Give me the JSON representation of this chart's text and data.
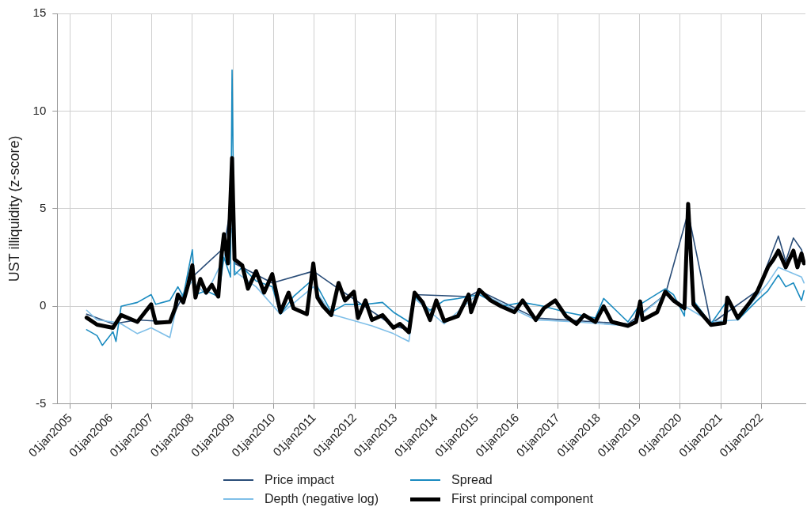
{
  "chart_data": {
    "type": "line",
    "ylabel": "UST illiquidity (z-score)",
    "xlim": [
      "2004-09-05",
      "2023-02-01"
    ],
    "ylim": [
      -5,
      15
    ],
    "yticks": [
      -5,
      0,
      5,
      10,
      15
    ],
    "xticks": [
      {
        "value": "2005-01-01",
        "label": "01jan2005"
      },
      {
        "value": "2006-01-01",
        "label": "01jan2006"
      },
      {
        "value": "2007-01-01",
        "label": "01jan2007"
      },
      {
        "value": "2008-01-01",
        "label": "01jan2008"
      },
      {
        "value": "2009-01-01",
        "label": "01jan2009"
      },
      {
        "value": "2010-01-01",
        "label": "01jan2010"
      },
      {
        "value": "2011-01-01",
        "label": "01jan2011"
      },
      {
        "value": "2012-01-01",
        "label": "01jan2012"
      },
      {
        "value": "2013-01-01",
        "label": "01jan2013"
      },
      {
        "value": "2014-01-01",
        "label": "01jan2014"
      },
      {
        "value": "2015-01-01",
        "label": "01jan2015"
      },
      {
        "value": "2016-01-01",
        "label": "01jan2016"
      },
      {
        "value": "2017-01-01",
        "label": "01jan2017"
      },
      {
        "value": "2018-01-01",
        "label": "01jan2018"
      },
      {
        "value": "2019-01-01",
        "label": "01jan2019"
      },
      {
        "value": "2020-01-01",
        "label": "01jan2020"
      },
      {
        "value": "2021-01-01",
        "label": "01jan2021"
      },
      {
        "value": "2022-01-01",
        "label": "01jan2022"
      }
    ],
    "grid": true,
    "legend": "bottom",
    "line_style": "solid",
    "marker": "none",
    "series": [
      {
        "name": "Price impact",
        "color": "#2a4d78",
        "x": [
          "2005-05-27",
          "2005-08-29",
          "2006-01-19",
          "2006-08-26",
          "2007-06-14",
          "2008-01-02",
          "2008-10-12",
          "2008-12-24",
          "2009-01-15",
          "2009-12-20",
          "2010-12-24",
          "2011-08-08",
          "2012-12-13",
          "2013-05-01",
          "2013-06-21",
          "2014-10-20",
          "2015-01-23",
          "2016-06-14",
          "2017-12-02",
          "2018-09-20",
          "2019-08-22",
          "2020-03-14",
          "2020-10-05",
          "2021-11-25",
          "2022-03-01",
          "2022-06-03",
          "2022-08-08",
          "2022-10-16",
          "2022-12-28",
          "2023-01-19"
        ],
        "values": [
          -0.4,
          -0.6,
          -0.9,
          -0.7,
          -0.8,
          1.5,
          3.0,
          5.5,
          2.2,
          1.2,
          1.8,
          0.9,
          -1.0,
          -1.2,
          0.6,
          0.5,
          0.8,
          -0.6,
          -0.8,
          -0.9,
          0.6,
          4.8,
          -0.9,
          0.8,
          2.2,
          3.6,
          2.3,
          3.5,
          2.9,
          2.4
        ]
      },
      {
        "name": "Depth (negative log)",
        "color": "#7fbfe8",
        "x": [
          "2005-05-27",
          "2005-08-29",
          "2006-01-19",
          "2006-04-02",
          "2006-08-26",
          "2006-12-28",
          "2007-06-14",
          "2007-08-25",
          "2008-01-02",
          "2008-05-05",
          "2008-10-12",
          "2008-12-24",
          "2009-01-15",
          "2009-07-28",
          "2010-03-04",
          "2010-12-24",
          "2011-06-03",
          "2012-06-03",
          "2012-12-13",
          "2013-05-01",
          "2013-06-21",
          "2014-03-14",
          "2015-01-23",
          "2016-06-14",
          "2017-06-14",
          "2018-09-20",
          "2019-08-22",
          "2020-10-05",
          "2021-06-03",
          "2022-03-01",
          "2022-06-03",
          "2022-12-28",
          "2023-01-19"
        ],
        "values": [
          -0.2,
          -0.7,
          -0.8,
          -0.9,
          -1.4,
          -1.1,
          -1.6,
          0.3,
          1.3,
          0.6,
          2.5,
          4.0,
          1.8,
          1.0,
          -0.4,
          1.0,
          -0.4,
          -1.0,
          -1.4,
          -1.8,
          0.4,
          -0.9,
          0.7,
          -0.7,
          -0.8,
          -1.0,
          0.6,
          -0.8,
          -0.7,
          1.2,
          2.0,
          1.5,
          1.2
        ]
      },
      {
        "name": "Spread",
        "color": "#1a8bc0",
        "x": [
          "2005-05-27",
          "2005-08-29",
          "2005-10-15",
          "2006-01-19",
          "2006-02-15",
          "2006-04-02",
          "2006-08-26",
          "2006-12-28",
          "2007-02-07",
          "2007-06-14",
          "2007-08-25",
          "2007-10-12",
          "2008-01-02",
          "2008-01-30",
          "2008-05-05",
          "2008-08-22",
          "2008-10-12",
          "2008-12-10",
          "2008-12-24",
          "2009-01-15",
          "2009-03-25",
          "2009-07-28",
          "2009-12-20",
          "2010-03-04",
          "2010-06-29",
          "2010-12-24",
          "2011-06-03",
          "2011-10-05",
          "2012-04-05",
          "2012-09-06",
          "2012-12-13",
          "2013-05-01",
          "2013-06-21",
          "2013-11-07",
          "2014-03-14",
          "2014-07-16",
          "2015-01-23",
          "2015-08-08",
          "2016-02-17",
          "2016-08-26",
          "2017-03-11",
          "2017-12-02",
          "2018-02-14",
          "2018-09-20",
          "2019-01-08",
          "2019-08-22",
          "2019-11-03",
          "2020-02-10",
          "2020-03-14",
          "2020-05-01",
          "2020-10-05",
          "2021-03-01",
          "2021-06-03",
          "2021-11-25",
          "2022-03-01",
          "2022-06-03",
          "2022-08-08",
          "2022-10-16",
          "2022-12-28",
          "2023-01-19"
        ],
        "values": [
          -1.2,
          -1.5,
          -2.0,
          -1.3,
          -1.8,
          0.0,
          0.2,
          0.6,
          0.1,
          0.3,
          1.0,
          0.5,
          2.9,
          0.6,
          0.8,
          0.5,
          2.5,
          1.5,
          12.1,
          1.6,
          2.0,
          1.3,
          1.0,
          -0.4,
          0.5,
          1.4,
          -0.3,
          0.1,
          0.1,
          0.2,
          -0.3,
          -0.8,
          0.5,
          -0.2,
          0.3,
          0.4,
          0.6,
          0.0,
          0.2,
          0.0,
          -0.3,
          -0.6,
          0.4,
          -0.8,
          0.1,
          0.9,
          0.6,
          -0.5,
          4.6,
          0.3,
          -0.9,
          0.3,
          -0.7,
          0.3,
          0.8,
          1.6,
          1.0,
          1.2,
          0.3,
          0.8
        ]
      },
      {
        "name": "First principal component",
        "color": "#000000",
        "x": [
          "2005-05-27",
          "2005-08-29",
          "2006-01-19",
          "2006-04-02",
          "2006-08-26",
          "2006-12-28",
          "2007-02-07",
          "2007-06-14",
          "2007-07-31",
          "2007-08-25",
          "2007-10-12",
          "2007-11-25",
          "2008-01-02",
          "2008-01-30",
          "2008-03-14",
          "2008-05-05",
          "2008-06-25",
          "2008-08-22",
          "2008-09-20",
          "2008-10-12",
          "2008-11-17",
          "2008-12-24",
          "2009-01-15",
          "2009-03-25",
          "2009-05-16",
          "2009-07-28",
          "2009-10-08",
          "2009-12-20",
          "2010-03-04",
          "2010-05-16",
          "2010-06-29",
          "2010-10-27",
          "2010-12-24",
          "2011-01-30",
          "2011-03-22",
          "2011-06-03",
          "2011-08-08",
          "2011-10-05",
          "2011-12-24",
          "2012-01-30",
          "2012-04-05",
          "2012-06-03",
          "2012-09-06",
          "2012-12-13",
          "2013-02-10",
          "2013-05-01",
          "2013-06-21",
          "2013-09-02",
          "2013-11-07",
          "2014-01-02",
          "2014-03-14",
          "2014-07-16",
          "2014-10-20",
          "2014-11-11",
          "2015-01-23",
          "2015-05-05",
          "2015-08-08",
          "2015-12-06",
          "2016-02-17",
          "2016-06-14",
          "2016-08-26",
          "2016-12-06",
          "2017-03-11",
          "2017-06-14",
          "2017-08-22",
          "2017-12-02",
          "2018-02-14",
          "2018-04-28",
          "2018-09-20",
          "2018-12-02",
          "2019-01-08",
          "2019-01-30",
          "2019-06-10",
          "2019-08-22",
          "2019-11-03",
          "2020-02-10",
          "2020-03-14",
          "2020-05-01",
          "2020-10-05",
          "2021-02-07",
          "2021-03-01",
          "2021-06-03",
          "2021-09-13",
          "2021-11-25",
          "2022-03-01",
          "2022-04-20",
          "2022-06-03",
          "2022-08-08",
          "2022-10-16",
          "2022-11-21",
          "2022-12-28",
          "2023-01-19"
        ],
        "values": [
          -0.58,
          -0.94,
          -1.1,
          -0.45,
          -0.8,
          0.1,
          -0.85,
          -0.8,
          -0.1,
          0.6,
          0.2,
          1.1,
          2.1,
          0.45,
          1.4,
          0.7,
          1.1,
          0.5,
          2.6,
          3.7,
          2.2,
          7.6,
          2.4,
          2.1,
          0.9,
          1.8,
          0.7,
          1.65,
          -0.3,
          0.7,
          -0.1,
          -0.4,
          2.2,
          0.45,
          0.0,
          -0.45,
          1.2,
          0.3,
          0.75,
          -0.6,
          0.3,
          -0.7,
          -0.45,
          -1.1,
          -0.9,
          -1.33,
          0.7,
          0.2,
          -0.7,
          0.3,
          -0.75,
          -0.5,
          0.6,
          -0.3,
          0.85,
          0.3,
          0.0,
          -0.3,
          0.3,
          -0.7,
          -0.1,
          0.3,
          -0.5,
          -0.9,
          -0.45,
          -0.8,
          0.0,
          -0.8,
          -1.0,
          -0.8,
          0.25,
          -0.7,
          -0.3,
          0.75,
          0.3,
          -0.1,
          5.25,
          0.1,
          -0.95,
          -0.85,
          0.45,
          -0.6,
          0.15,
          0.75,
          2.0,
          2.4,
          2.85,
          2.0,
          2.85,
          2.0,
          2.7,
          2.2
        ]
      }
    ]
  }
}
